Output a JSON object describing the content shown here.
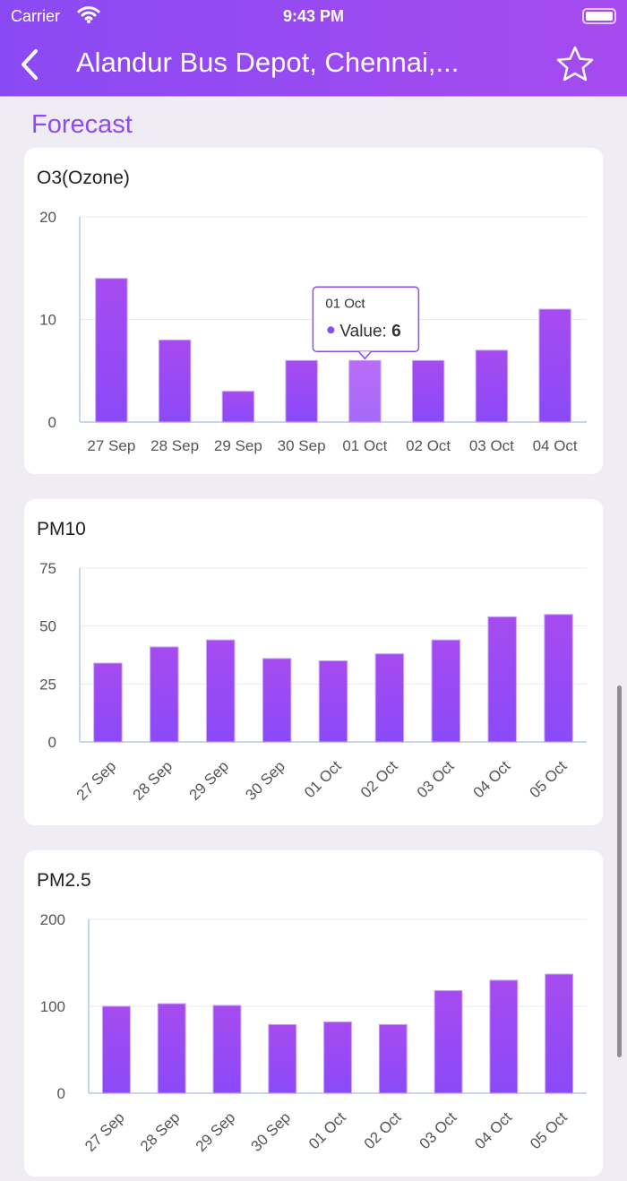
{
  "status_bar": {
    "carrier": "Carrier",
    "time": "9:43 PM"
  },
  "header": {
    "title": "Alandur Bus Depot, Chennai,...",
    "back_icon": "chevron-left-icon",
    "favorite_icon": "star-outline-icon"
  },
  "section_title": "Forecast",
  "colors": {
    "accent": "#8b4cf3",
    "bar_top": "#a64bf0",
    "bar_bottom": "#8a4af8"
  },
  "chart_data": [
    {
      "type": "bar",
      "title": "O3(Ozone)",
      "categories": [
        "27 Sep",
        "28 Sep",
        "29 Sep",
        "30 Sep",
        "01 Oct",
        "02 Oct",
        "03 Oct",
        "04 Oct"
      ],
      "values": [
        14,
        8,
        3,
        6,
        6,
        6,
        7,
        11
      ],
      "ylim": [
        0,
        20
      ],
      "yticks": [
        0,
        10,
        20
      ],
      "grid": true,
      "tooltip": {
        "category": "01 Oct",
        "label": "Value:",
        "value": "6"
      }
    },
    {
      "type": "bar",
      "title": "PM10",
      "categories": [
        "27 Sep",
        "28 Sep",
        "29 Sep",
        "30 Sep",
        "01 Oct",
        "02 Oct",
        "03 Oct",
        "04 Oct",
        "05 Oct"
      ],
      "values": [
        34,
        41,
        44,
        36,
        35,
        38,
        44,
        54,
        55
      ],
      "ylim": [
        0,
        75
      ],
      "yticks": [
        0,
        25,
        50,
        75
      ],
      "grid": true
    },
    {
      "type": "bar",
      "title": "PM2.5",
      "categories": [
        "27 Sep",
        "28 Sep",
        "29 Sep",
        "30 Sep",
        "01 Oct",
        "02 Oct",
        "03 Oct",
        "04 Oct",
        "05 Oct"
      ],
      "values": [
        100,
        103,
        101,
        79,
        82,
        79,
        118,
        130,
        137
      ],
      "ylim": [
        0,
        200
      ],
      "yticks": [
        0,
        100,
        200
      ],
      "grid": true
    }
  ]
}
